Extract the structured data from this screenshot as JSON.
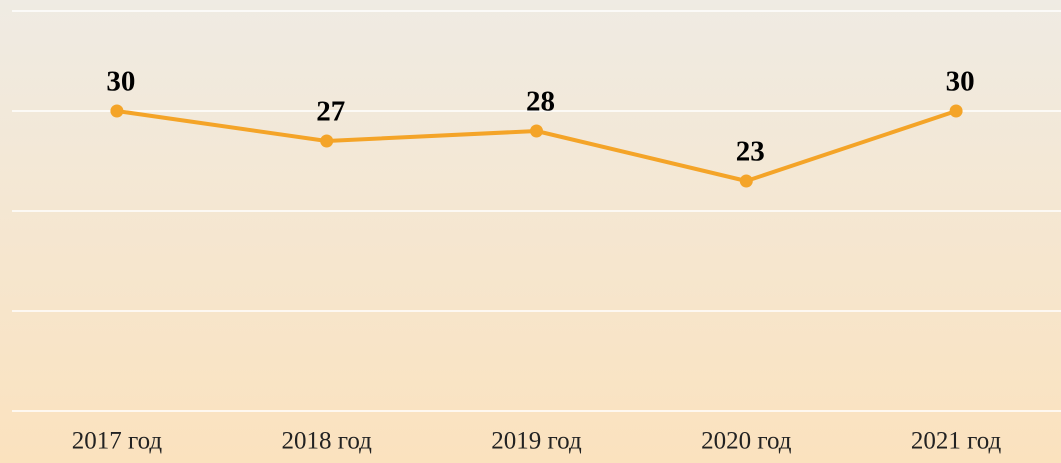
{
  "chart_data": {
    "type": "line",
    "categories": [
      "2017 год",
      "2018 год",
      "2019 год",
      "2020 год",
      "2021 год"
    ],
    "series": [
      {
        "name": null,
        "color": "#f4a428",
        "values": [
          30,
          27,
          28,
          23,
          30
        ]
      }
    ],
    "ylim": [
      0,
      40
    ],
    "yticks": [
      0,
      10,
      20,
      30,
      40
    ],
    "grid": true
  }
}
